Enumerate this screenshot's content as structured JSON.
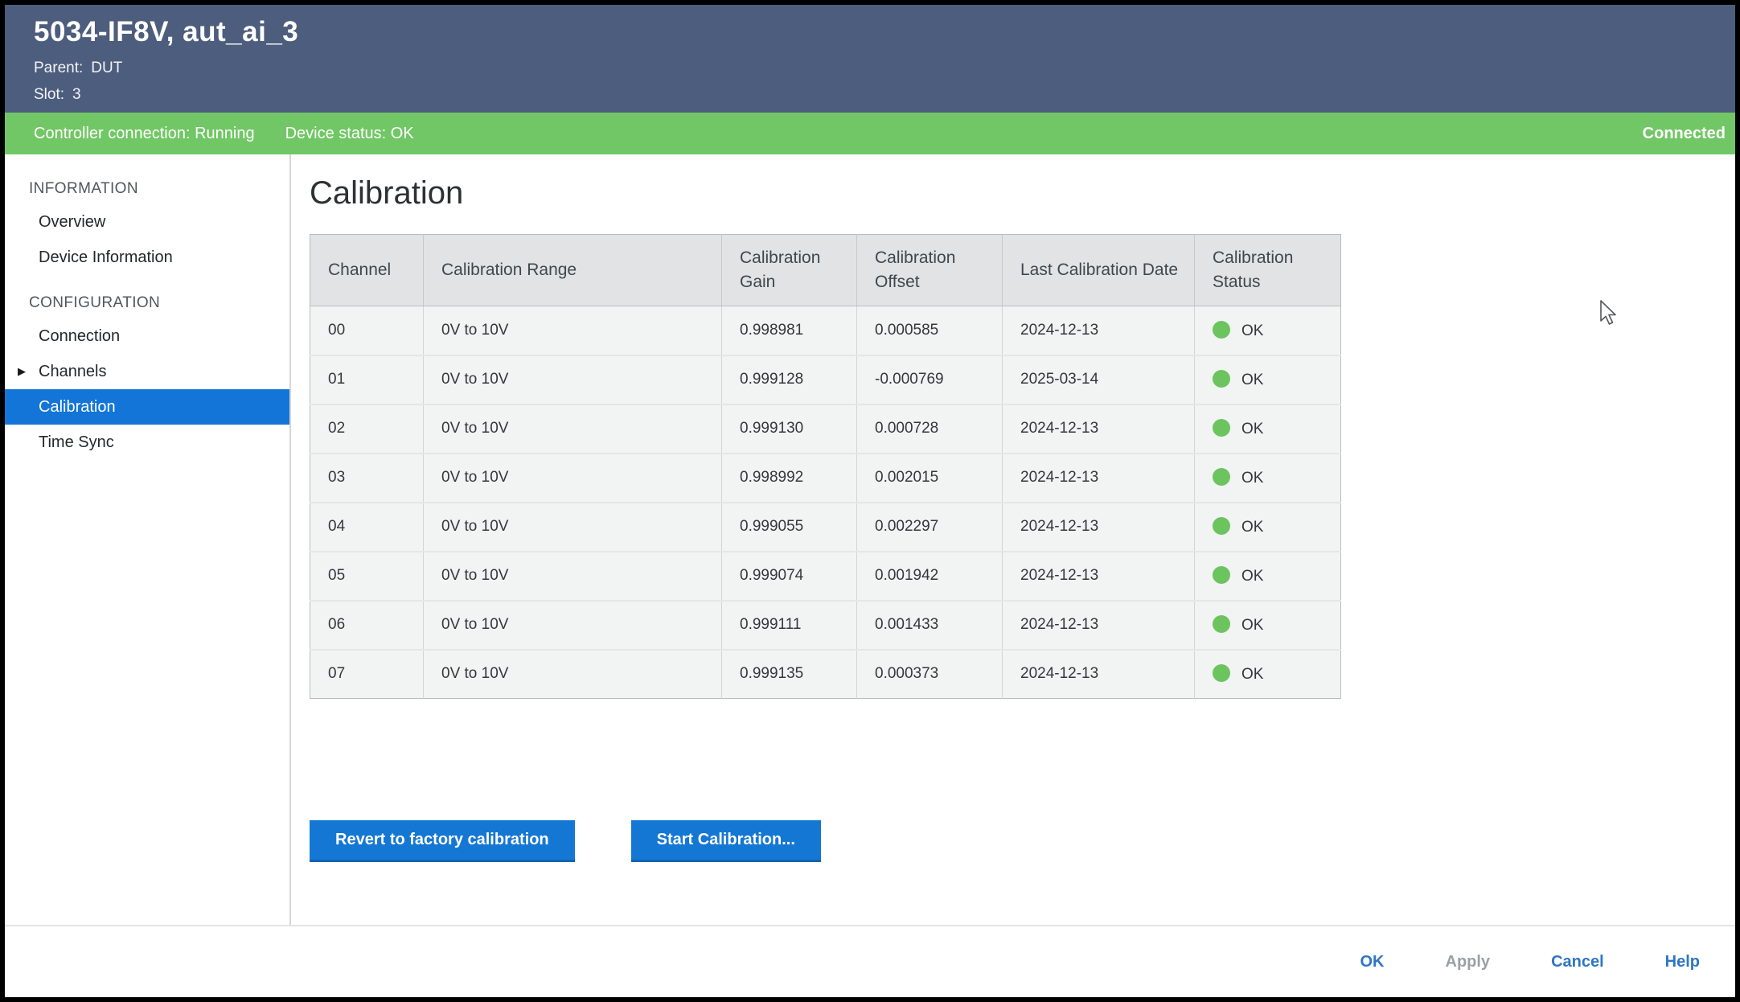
{
  "window": {
    "title": "5034-IF8V, aut_ai_3",
    "parent_label": "Parent:",
    "parent_value": "DUT",
    "slot_label": "Slot:",
    "slot_value": "3"
  },
  "status_bar": {
    "controller_connection": "Controller connection: Running",
    "device_status": "Device status: OK",
    "connected": "Connected"
  },
  "sidebar": {
    "sections": [
      {
        "label": "INFORMATION",
        "items": [
          {
            "label": "Overview",
            "selected": false
          },
          {
            "label": "Device Information",
            "selected": false
          }
        ]
      },
      {
        "label": "CONFIGURATION",
        "items": [
          {
            "label": "Connection",
            "selected": false
          },
          {
            "label": "Channels",
            "selected": false,
            "expandable": true
          },
          {
            "label": "Calibration",
            "selected": true
          },
          {
            "label": "Time Sync",
            "selected": false
          }
        ]
      }
    ]
  },
  "main": {
    "title": "Calibration",
    "table": {
      "columns": [
        "Channel",
        "Calibration Range",
        "Calibration Gain",
        "Calibration Offset",
        "Last Calibration Date",
        "Calibration Status"
      ],
      "rows": [
        {
          "channel": "00",
          "range": "0V to 10V",
          "gain": "0.998981",
          "offset": "0.000585",
          "date": "2024-12-13",
          "status": "OK"
        },
        {
          "channel": "01",
          "range": "0V to 10V",
          "gain": "0.999128",
          "offset": "-0.000769",
          "date": "2025-03-14",
          "status": "OK"
        },
        {
          "channel": "02",
          "range": "0V to 10V",
          "gain": "0.999130",
          "offset": "0.000728",
          "date": "2024-12-13",
          "status": "OK"
        },
        {
          "channel": "03",
          "range": "0V to 10V",
          "gain": "0.998992",
          "offset": "0.002015",
          "date": "2024-12-13",
          "status": "OK"
        },
        {
          "channel": "04",
          "range": "0V to 10V",
          "gain": "0.999055",
          "offset": "0.002297",
          "date": "2024-12-13",
          "status": "OK"
        },
        {
          "channel": "05",
          "range": "0V to 10V",
          "gain": "0.999074",
          "offset": "0.001942",
          "date": "2024-12-13",
          "status": "OK"
        },
        {
          "channel": "06",
          "range": "0V to 10V",
          "gain": "0.999111",
          "offset": "0.001433",
          "date": "2024-12-13",
          "status": "OK"
        },
        {
          "channel": "07",
          "range": "0V to 10V",
          "gain": "0.999135",
          "offset": "0.000373",
          "date": "2024-12-13",
          "status": "OK"
        }
      ]
    },
    "buttons": {
      "revert": "Revert to factory calibration",
      "start": "Start Calibration..."
    }
  },
  "footer": {
    "ok": "OK",
    "apply": "Apply",
    "cancel": "Cancel",
    "help": "Help"
  },
  "colors": {
    "header_bg": "#4d5d7d",
    "status_bar_green": "#71c765",
    "selected_blue": "#1375d8",
    "button_blue": "#1577d4",
    "status_dot_green": "#6cc45f",
    "disabled_gray": "#9aa0a5"
  }
}
